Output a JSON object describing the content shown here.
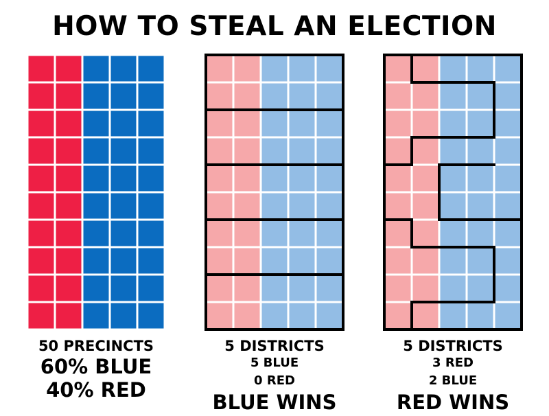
{
  "title": "HOW TO STEAL AN ELECTION",
  "colors": {
    "red": "#ee1f45",
    "blue": "#0b6cc0",
    "light_red": "#f6a8aa",
    "light_blue": "#93bde5",
    "gridline": "#ffffff",
    "border": "#000000"
  },
  "grid": {
    "rows": 10,
    "cols": 5,
    "red_cols": 2,
    "blue_cols": 3
  },
  "panels": [
    {
      "name": "precincts",
      "caption": [
        "50 PRECINCTS",
        "60% BLUE",
        "40% RED"
      ]
    },
    {
      "name": "fair-districts",
      "caption": [
        "5 DISTRICTS",
        "5 BLUE",
        "0 RED",
        "BLUE WINS"
      ]
    },
    {
      "name": "gerrymandered-districts",
      "caption": [
        "5 DISTRICTS",
        "3 RED",
        "2 BLUE",
        "RED WINS"
      ]
    }
  ]
}
